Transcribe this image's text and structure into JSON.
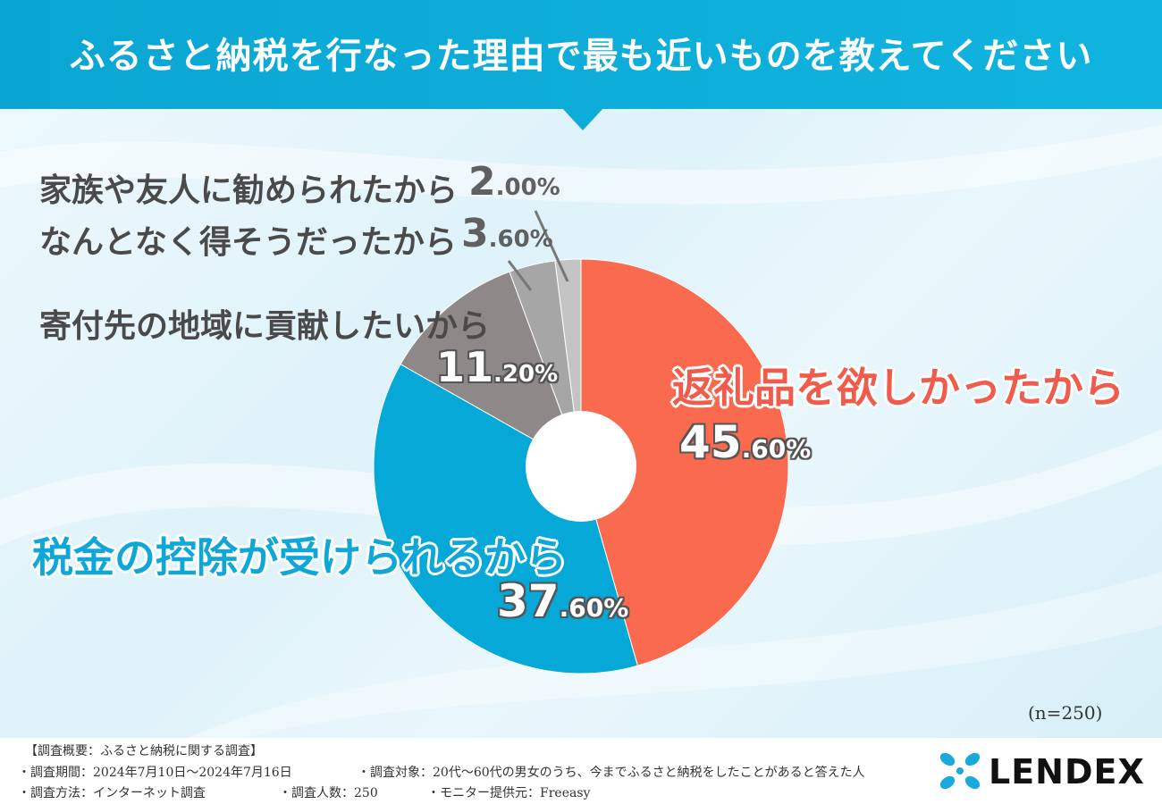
{
  "header": {
    "title": "ふるさと納税を行なった理由で最も近いものを教えてください"
  },
  "chart_data": {
    "type": "pie",
    "categories": [
      "返礼品を欲しかったから",
      "税金の控除が受けられるから",
      "寄付先の地域に貢献したいから",
      "なんとなく得そうだったから",
      "家族や友人に勧められたから"
    ],
    "values": [
      45.6,
      37.6,
      11.2,
      3.6,
      2.0
    ],
    "value_labels": [
      {
        "main": "45",
        "small": ".60%"
      },
      {
        "main": "37",
        "small": ".60%"
      },
      {
        "main": "11",
        "small": ".20%"
      },
      {
        "main": "3",
        "small": ".60%"
      },
      {
        "main": "2",
        "small": ".00%"
      }
    ],
    "colors": [
      "#fa6a4e",
      "#06a8d8",
      "#8e8888",
      "#a6a6a6",
      "#c4c4c4"
    ],
    "note": "(n=250)"
  },
  "footer": {
    "summary_title": "【調査概要：ふるさと納税に関する調査】",
    "period": "・調査期間：2024年7月10日〜2024年7月16日",
    "target": "・調査対象：20代〜60代の男女のうち、今までふるさと納税をしたことがあると答えた人",
    "method": "・調査方法：インターネット調査",
    "respondents": "・調査人数：250",
    "provider": "・モニター提供元：Freeasy"
  },
  "logo": {
    "text": "LENDEX",
    "mark_color": "#1aa9dc"
  }
}
